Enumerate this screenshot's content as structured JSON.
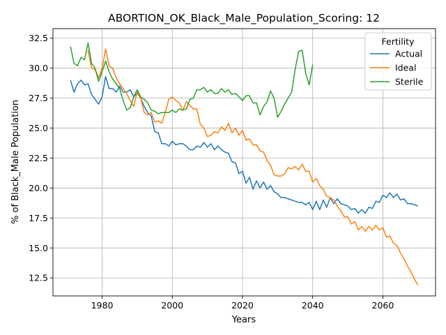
{
  "chart_data": {
    "type": "line",
    "title": "ABORTION_OK_Black_Male_Population_Scoring: 12",
    "xlabel": "Years",
    "ylabel": "% of Black_Male Population",
    "xlim": [
      1966,
      2075
    ],
    "ylim": [
      11.0,
      33.3
    ],
    "xticks": [
      1980,
      2000,
      2020,
      2040,
      2060
    ],
    "yticks": [
      12.5,
      15.0,
      17.5,
      20.0,
      22.5,
      25.0,
      27.5,
      30.0,
      32.5
    ],
    "ytick_labels": [
      "12.5",
      "15.0",
      "17.5",
      "20.0",
      "22.5",
      "25.0",
      "27.5",
      "30.0",
      "32.5"
    ],
    "grid": true,
    "legend": {
      "title": "Fertility",
      "position": "top-right"
    },
    "x": [
      1971,
      1972,
      1973,
      1974,
      1975,
      1976,
      1977,
      1978,
      1979,
      1980,
      1981,
      1982,
      1983,
      1984,
      1985,
      1986,
      1987,
      1988,
      1989,
      1990,
      1991,
      1992,
      1993,
      1994,
      1995,
      1996,
      1997,
      1998,
      1999,
      2000,
      2001,
      2002,
      2003,
      2004,
      2005,
      2006,
      2007,
      2008,
      2009,
      2010,
      2011,
      2012,
      2013,
      2014,
      2015,
      2016,
      2017,
      2018,
      2019,
      2020,
      2021,
      2022,
      2023,
      2024,
      2025,
      2026,
      2027,
      2028,
      2029,
      2030,
      2031,
      2032,
      2033,
      2034,
      2035,
      2036,
      2037,
      2038,
      2039,
      2040,
      2041,
      2042,
      2043,
      2044,
      2045,
      2046,
      2047,
      2048,
      2049,
      2050,
      2051,
      2052,
      2053,
      2054,
      2055,
      2056,
      2057,
      2058,
      2059,
      2060,
      2061,
      2062,
      2063,
      2064,
      2065,
      2066,
      2067,
      2068,
      2069,
      2070
    ],
    "series": [
      {
        "name": "Actual",
        "color": "#1f77b4",
        "values": [
          29.0,
          28.0,
          28.7,
          29.0,
          28.6,
          28.7,
          27.8,
          27.4,
          27.0,
          27.6,
          29.3,
          28.3,
          28.3,
          28.0,
          28.5,
          28.0,
          28.0,
          28.2,
          27.6,
          27.9,
          27.5,
          26.8,
          26.3,
          26.0,
          24.7,
          24.6,
          23.7,
          23.7,
          23.5,
          23.9,
          23.6,
          23.7,
          23.7,
          23.5,
          23.2,
          23.2,
          23.5,
          23.4,
          23.8,
          23.4,
          23.7,
          23.2,
          23.5,
          23.2,
          23.0,
          22.9,
          22.2,
          22.1,
          21.2,
          21.4,
          20.4,
          20.9,
          19.9,
          20.6,
          20.0,
          20.5,
          19.9,
          20.2,
          19.7,
          19.5,
          19.2,
          19.2,
          19.1,
          19.0,
          18.9,
          18.8,
          18.8,
          18.6,
          18.8,
          18.2,
          18.9,
          18.2,
          19.0,
          18.4,
          19.2,
          18.7,
          19.1,
          18.7,
          18.6,
          18.5,
          18.2,
          18.3,
          17.9,
          18.2,
          17.9,
          18.4,
          18.3,
          18.9,
          18.8,
          19.4,
          19.2,
          19.6,
          19.2,
          19.5,
          19.0,
          19.1,
          18.7,
          18.7,
          18.6,
          18.5
        ]
      },
      {
        "name": "Ideal",
        "color": "#ff7f0e",
        "values": [
          null,
          null,
          null,
          null,
          null,
          31.5,
          30.0,
          29.9,
          29.2,
          30.0,
          31.6,
          30.2,
          30.0,
          29.2,
          28.7,
          28.3,
          27.9,
          27.3,
          26.8,
          28.0,
          27.5,
          26.3,
          26.1,
          26.3,
          25.5,
          25.6,
          25.4,
          26.3,
          27.4,
          27.6,
          27.3,
          27.1,
          26.5,
          27.2,
          26.9,
          26.6,
          26.6,
          25.3,
          25.0,
          24.3,
          24.4,
          24.7,
          24.6,
          25.1,
          24.8,
          25.4,
          24.6,
          25.0,
          24.4,
          24.8,
          24.0,
          24.1,
          23.6,
          23.6,
          23.1,
          23.0,
          22.3,
          21.9,
          21.1,
          21.0,
          21.0,
          21.2,
          21.7,
          21.6,
          21.8,
          21.5,
          22.0,
          21.4,
          21.4,
          20.5,
          20.8,
          20.2,
          19.9,
          19.3,
          19.2,
          19.0,
          18.5,
          18.1,
          17.6,
          17.6,
          17.0,
          17.2,
          16.5,
          16.8,
          16.4,
          16.8,
          16.5,
          16.9,
          16.5,
          16.7,
          15.9,
          16.0,
          15.4,
          15.2,
          14.6,
          14.1,
          13.5,
          13.0,
          12.4,
          11.9
        ]
      },
      {
        "name": "Sterile",
        "color": "#2ca02c",
        "values": [
          31.8,
          30.4,
          30.2,
          30.9,
          30.7,
          32.1,
          30.4,
          30.0,
          28.9,
          29.7,
          30.6,
          29.7,
          29.1,
          28.7,
          28.3,
          27.3,
          26.5,
          26.7,
          27.6,
          28.2,
          27.6,
          27.4,
          27.1,
          26.5,
          26.4,
          26.2,
          26.3,
          26.3,
          26.3,
          26.5,
          26.3,
          26.6,
          26.5,
          26.6,
          27.4,
          27.5,
          28.2,
          28.2,
          28.4,
          28.0,
          28.2,
          27.9,
          27.9,
          28.3,
          28.0,
          28.2,
          27.8,
          27.9,
          27.6,
          27.3,
          27.7,
          27.7,
          27.1,
          27.1,
          26.1,
          26.8,
          27.2,
          28.1,
          27.5,
          25.9,
          26.4,
          27.0,
          27.5,
          28.0,
          29.9,
          31.4,
          31.5,
          29.6,
          28.6,
          30.3,
          null,
          null,
          null,
          null,
          null,
          null,
          null,
          null,
          null,
          null,
          null,
          null,
          null,
          null,
          null,
          null,
          null,
          null,
          null,
          null,
          null,
          null,
          null,
          null,
          null,
          null,
          null,
          null,
          null,
          null
        ]
      }
    ]
  }
}
